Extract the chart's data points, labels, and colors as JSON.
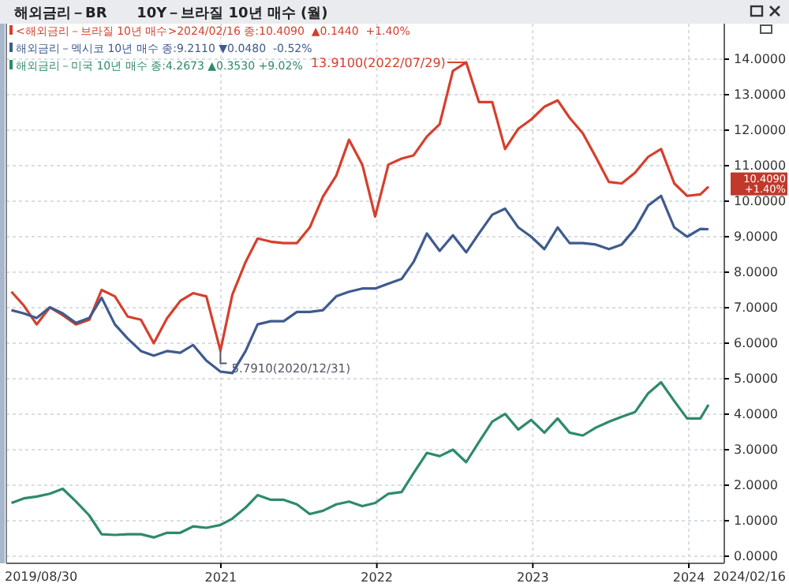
{
  "chart_data": {
    "type": "line",
    "title": "해외금리－BR      10Y－브라질 10년 매수 (월)",
    "x": [
      "2019-08-30",
      "2019-09-28",
      "2019-10-28",
      "2019-11-28",
      "2019-12-28",
      "2020-01-28",
      "2020-02-28",
      "2020-03-28",
      "2020-04-28",
      "2020-05-28",
      "2020-06-28",
      "2020-07-28",
      "2020-08-28",
      "2020-09-28",
      "2020-10-28",
      "2020-11-28",
      "2020-12-31",
      "2021-01-28",
      "2021-02-28",
      "2021-03-28",
      "2021-04-28",
      "2021-05-28",
      "2021-06-28",
      "2021-07-28",
      "2021-08-28",
      "2021-09-28",
      "2021-10-28",
      "2021-11-28",
      "2021-12-28",
      "2022-01-28",
      "2022-02-28",
      "2022-03-28",
      "2022-04-28",
      "2022-05-28",
      "2022-06-28",
      "2022-07-29",
      "2022-08-28",
      "2022-09-28",
      "2022-10-28",
      "2022-11-28",
      "2022-12-28",
      "2023-01-28",
      "2023-02-28",
      "2023-03-28",
      "2023-04-28",
      "2023-05-28",
      "2023-06-28",
      "2023-07-28",
      "2023-08-28",
      "2023-09-28",
      "2023-10-28",
      "2023-11-28",
      "2023-12-28",
      "2024-01-28",
      "2024-02-16"
    ],
    "series": [
      {
        "name": "<해외금리－브라질 10년 매수>2024/02/16 종:10.4090  ▲0.1440  +1.40%",
        "color": "#d63f2c",
        "values": [
          7.45,
          7.06,
          6.53,
          7.01,
          6.79,
          6.53,
          6.66,
          7.5,
          7.32,
          6.75,
          6.66,
          6.0,
          6.7,
          7.19,
          7.41,
          7.32,
          5.791,
          7.37,
          8.29,
          8.95,
          8.86,
          8.82,
          8.82,
          9.26,
          10.13,
          10.72,
          11.73,
          11.03,
          9.57,
          11.03,
          11.2,
          11.29,
          11.82,
          12.17,
          13.67,
          13.91,
          12.79,
          12.79,
          11.47,
          12.04,
          12.3,
          12.66,
          12.84,
          12.35,
          11.91,
          11.25,
          10.54,
          10.5,
          10.8,
          11.25,
          11.47,
          10.5,
          10.15,
          10.19,
          10.409
        ]
      },
      {
        "name": "해외금리－멕시코 10년 매수 종:9.2110 ▼0.0480  -0.52%",
        "color": "#3f5b8e",
        "values": [
          6.93,
          6.84,
          6.71,
          7.01,
          6.84,
          6.57,
          6.71,
          7.28,
          6.53,
          6.13,
          5.78,
          5.65,
          5.78,
          5.73,
          5.95,
          5.51,
          5.2,
          5.16,
          5.78,
          6.53,
          6.62,
          6.62,
          6.88,
          6.88,
          6.93,
          7.32,
          7.45,
          7.54,
          7.54,
          7.68,
          7.81,
          8.29,
          9.09,
          8.6,
          9.04,
          8.56,
          9.09,
          9.62,
          9.79,
          9.26,
          9.0,
          8.65,
          9.26,
          8.82,
          8.82,
          8.78,
          8.65,
          8.78,
          9.22,
          9.88,
          10.15,
          9.26,
          9.0,
          9.22,
          9.211
        ]
      },
      {
        "name": "해외금리－미국 10년 매수 종:4.2673 ▲0.3530 +9.02%",
        "color": "#2e8a6b",
        "values": [
          1.5,
          1.63,
          1.68,
          1.76,
          1.9,
          1.54,
          1.15,
          0.62,
          0.6,
          0.62,
          0.62,
          0.53,
          0.66,
          0.66,
          0.84,
          0.8,
          0.88,
          1.06,
          1.37,
          1.72,
          1.59,
          1.59,
          1.46,
          1.19,
          1.28,
          1.46,
          1.54,
          1.41,
          1.5,
          1.76,
          1.81,
          2.34,
          2.91,
          2.82,
          3.0,
          2.65,
          3.22,
          3.79,
          4.01,
          3.57,
          3.84,
          3.48,
          3.88,
          3.48,
          3.4,
          3.62,
          3.79,
          3.93,
          4.06,
          4.59,
          4.9,
          4.37,
          3.88,
          3.88,
          4.2673
        ]
      }
    ],
    "xlim": [
      "2019-08-18",
      "2024-03-24"
    ],
    "xticks": [
      {
        "value": "2021-01-01",
        "label": "2021"
      },
      {
        "value": "2022-01-01",
        "label": "2022"
      },
      {
        "value": "2023-01-01",
        "label": "2023"
      },
      {
        "value": "2024-01-01",
        "label": "2024"
      }
    ],
    "ylim": [
      -0.2,
      15
    ],
    "yticks": [
      {
        "value": 0,
        "label": "0.0000"
      },
      {
        "value": 1,
        "label": "1.0000"
      },
      {
        "value": 2,
        "label": "2.0000"
      },
      {
        "value": 3,
        "label": "3.0000"
      },
      {
        "value": 4,
        "label": "4.0000"
      },
      {
        "value": 5,
        "label": "5.0000"
      },
      {
        "value": 6,
        "label": "6.0000"
      },
      {
        "value": 7,
        "label": "7.0000"
      },
      {
        "value": 8,
        "label": "8.0000"
      },
      {
        "value": 9,
        "label": "9.0000"
      },
      {
        "value": 10,
        "label": "10.0000"
      },
      {
        "value": 11,
        "label": "11.0000"
      },
      {
        "value": 12,
        "label": "12.0000"
      },
      {
        "value": 13,
        "label": "13.0000"
      },
      {
        "value": 14,
        "label": "14.0000"
      }
    ],
    "grid": true,
    "legend": "top left",
    "marker": "none",
    "line_style": "solid",
    "annotations": [
      {
        "text": "13.9100(2022/07/29)",
        "x": "2022-07-29",
        "y": 13.91
      },
      {
        "text": "5.7910(2020/12/31)",
        "x": "2020-12-31",
        "y": 5.791
      },
      "10.4090\n+1.40%",
      "2019/08/30",
      "2024/02/16"
    ]
  }
}
